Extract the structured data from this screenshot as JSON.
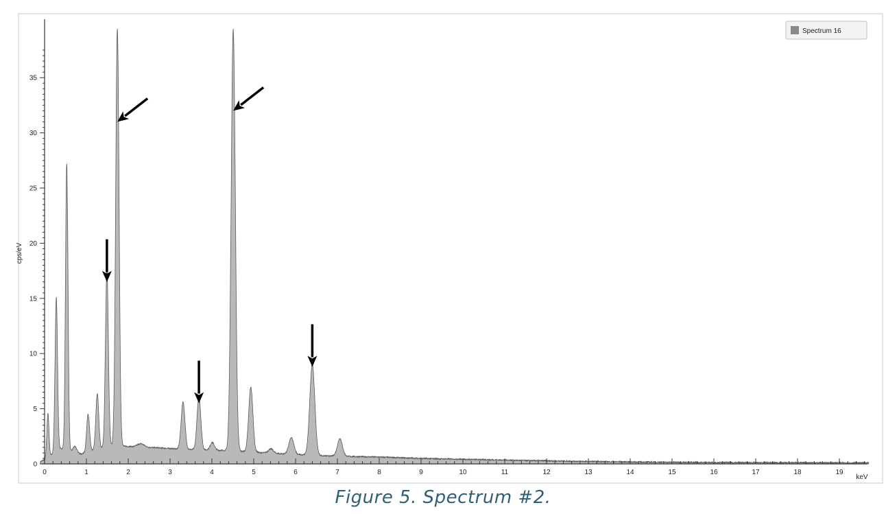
{
  "caption": "Figure 5. Spectrum #2.",
  "colors": {
    "fill": "#b9b9b9",
    "stroke": "#5a5a5a",
    "axis": "#333333",
    "frame": "#c8c8c8",
    "arrow": "#000000",
    "caption": "#2f5f75"
  },
  "chart_data": {
    "type": "area",
    "title": "",
    "xlabel": "keV",
    "ylabel": "cps/eV",
    "xlim": [
      -0.1,
      19.7
    ],
    "ylim": [
      0,
      40
    ],
    "x_ticks": [
      0,
      1,
      2,
      3,
      4,
      5,
      6,
      7,
      8,
      9,
      10,
      11,
      12,
      13,
      14,
      15,
      16,
      17,
      18,
      19
    ],
    "y_ticks": [
      0,
      5,
      10,
      15,
      20,
      25,
      30,
      35
    ],
    "grid": false,
    "legend": {
      "placement": "top-right",
      "entries": [
        "Spectrum 16"
      ]
    },
    "series": [
      {
        "name": "Spectrum 16",
        "peaks": [
          {
            "x": 0.08,
            "y": 4.0,
            "width": 0.025
          },
          {
            "x": 0.28,
            "y": 14.0,
            "width": 0.03
          },
          {
            "x": 0.53,
            "y": 26.0,
            "width": 0.03
          },
          {
            "x": 0.72,
            "y": 0.6,
            "width": 0.05
          },
          {
            "x": 1.04,
            "y": 3.4,
            "width": 0.035
          },
          {
            "x": 1.26,
            "y": 5.0,
            "width": 0.035
          },
          {
            "x": 1.49,
            "y": 16.1,
            "width": 0.035
          },
          {
            "x": 1.74,
            "y": 37.8,
            "width": 0.04
          },
          {
            "x": 2.3,
            "y": 0.3,
            "width": 0.08
          },
          {
            "x": 3.31,
            "y": 4.3,
            "width": 0.045
          },
          {
            "x": 3.69,
            "y": 4.9,
            "width": 0.045
          },
          {
            "x": 4.01,
            "y": 0.7,
            "width": 0.05
          },
          {
            "x": 4.51,
            "y": 38.2,
            "width": 0.05
          },
          {
            "x": 4.93,
            "y": 5.9,
            "width": 0.05
          },
          {
            "x": 5.41,
            "y": 0.4,
            "width": 0.06
          },
          {
            "x": 5.9,
            "y": 1.5,
            "width": 0.06
          },
          {
            "x": 6.4,
            "y": 8.3,
            "width": 0.06
          },
          {
            "x": 7.06,
            "y": 1.6,
            "width": 0.06
          }
        ],
        "background": [
          [
            -0.1,
            0.2
          ],
          [
            0.0,
            0.4
          ],
          [
            0.15,
            0.8
          ],
          [
            0.4,
            1.4
          ],
          [
            0.65,
            1.0
          ],
          [
            0.9,
            0.9
          ],
          [
            1.1,
            1.2
          ],
          [
            1.35,
            1.4
          ],
          [
            1.6,
            1.6
          ],
          [
            1.9,
            1.6
          ],
          [
            2.5,
            1.5
          ],
          [
            3.0,
            1.4
          ],
          [
            3.5,
            1.3
          ],
          [
            4.0,
            1.25
          ],
          [
            4.5,
            1.2
          ],
          [
            5.0,
            1.05
          ],
          [
            5.5,
            0.95
          ],
          [
            6.0,
            0.85
          ],
          [
            6.5,
            0.75
          ],
          [
            7.0,
            0.7
          ],
          [
            8.0,
            0.62
          ],
          [
            9.0,
            0.5
          ],
          [
            10.0,
            0.42
          ],
          [
            11.0,
            0.35
          ],
          [
            12.0,
            0.28
          ],
          [
            13.0,
            0.22
          ],
          [
            14.0,
            0.18
          ],
          [
            15.0,
            0.15
          ],
          [
            16.0,
            0.13
          ],
          [
            17.0,
            0.12
          ],
          [
            18.0,
            0.11
          ],
          [
            19.0,
            0.1
          ],
          [
            19.7,
            0.1
          ]
        ]
      }
    ],
    "annotations": [
      {
        "type": "arrow",
        "direction": "diagonal",
        "target_x": 1.74,
        "target_y": 31.0
      },
      {
        "type": "arrow",
        "direction": "diagonal",
        "target_x": 4.51,
        "target_y": 32.0
      },
      {
        "type": "arrow",
        "direction": "down",
        "target_x": 1.49,
        "target_y": 16.5
      },
      {
        "type": "arrow",
        "direction": "down",
        "target_x": 3.69,
        "target_y": 5.5
      },
      {
        "type": "arrow",
        "direction": "down",
        "target_x": 6.4,
        "target_y": 8.8
      }
    ]
  }
}
